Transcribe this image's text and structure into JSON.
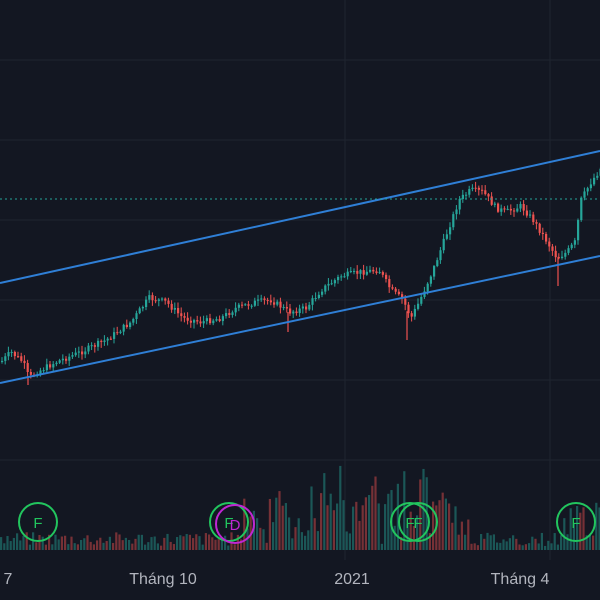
{
  "chart_data": {
    "type": "candlestick",
    "x_ticks": [
      "7",
      "Tháng 10",
      "2021",
      "Tháng 4"
    ],
    "colors": {
      "background": "#131722",
      "grid": "#1f2430",
      "up": "#26a69a",
      "down": "#ef5350",
      "channel": "#2962ff",
      "channel_display": "#2f7fd6",
      "marker_green": "#22c55e",
      "marker_purple": "#c026d3",
      "dotted_line": "#26a69a",
      "tick_text": "#b2b5be"
    },
    "grid": true,
    "markers": [
      {
        "label": "F",
        "color": "green"
      },
      {
        "label": "F",
        "color": "green"
      },
      {
        "label": "D",
        "color": "purple"
      },
      {
        "label": "F",
        "color": "green"
      },
      {
        "label": "F",
        "color": "green"
      },
      {
        "label": "F",
        "color": "green"
      }
    ],
    "price_path": [
      [
        0,
        362
      ],
      [
        10,
        352
      ],
      [
        22,
        362
      ],
      [
        28,
        378
      ],
      [
        36,
        372
      ],
      [
        55,
        362
      ],
      [
        80,
        352
      ],
      [
        105,
        340
      ],
      [
        130,
        322
      ],
      [
        148,
        298
      ],
      [
        165,
        302
      ],
      [
        182,
        318
      ],
      [
        200,
        322
      ],
      [
        220,
        318
      ],
      [
        235,
        308
      ],
      [
        255,
        302
      ],
      [
        270,
        300
      ],
      [
        288,
        312
      ],
      [
        305,
        308
      ],
      [
        320,
        290
      ],
      [
        340,
        276
      ],
      [
        360,
        272
      ],
      [
        378,
        270
      ],
      [
        390,
        290
      ],
      [
        402,
        300
      ],
      [
        410,
        318
      ],
      [
        418,
        302
      ],
      [
        432,
        270
      ],
      [
        444,
        238
      ],
      [
        458,
        200
      ],
      [
        470,
        190
      ],
      [
        482,
        192
      ],
      [
        495,
        208
      ],
      [
        505,
        212
      ],
      [
        520,
        206
      ],
      [
        532,
        220
      ],
      [
        545,
        240
      ],
      [
        556,
        258
      ],
      [
        566,
        252
      ],
      [
        574,
        242
      ],
      [
        580,
        200
      ],
      [
        590,
        182
      ],
      [
        600,
        168
      ]
    ],
    "volume_seed": 7
  }
}
